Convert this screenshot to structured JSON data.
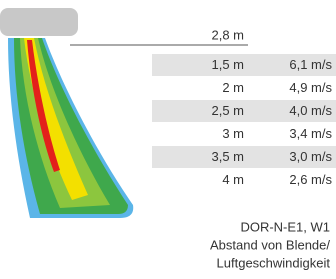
{
  "header": {
    "distance": "2,8 m"
  },
  "table": {
    "rows": [
      [
        "1,5 m",
        "6,1 m/s"
      ],
      [
        "2 m",
        "4,9 m/s"
      ],
      [
        "2,5 m",
        "4,0 m/s"
      ],
      [
        "3 m",
        "3,4 m/s"
      ],
      [
        "3,5 m",
        "3,0 m/s"
      ],
      [
        "4 m",
        "2,6 m/s"
      ]
    ]
  },
  "caption": {
    "lines": [
      "DOR-N-E1, W1",
      "Abstand von Blende/",
      "Luftgeschwindigkeit"
    ]
  }
}
